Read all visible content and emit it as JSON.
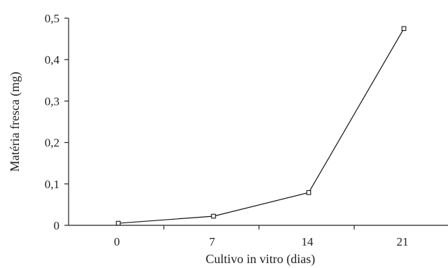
{
  "chart_data": {
    "type": "line",
    "categories": [
      "0",
      "7",
      "14",
      "21"
    ],
    "x": [
      0,
      7,
      14,
      21
    ],
    "series": [
      {
        "values": [
          0.005,
          0.022,
          0.079,
          0.475
        ]
      }
    ],
    "xlabel": "Cultivo  in vitro (dias)",
    "ylabel": "Matéria fresca (mg)",
    "ylim": [
      0,
      0.5
    ],
    "yticks": [
      0,
      0.1,
      0.2,
      0.3,
      0.4,
      0.5
    ],
    "ytick_labels": [
      "0",
      "0,1",
      "0,2",
      "0,3",
      "0,4",
      "0,5"
    ],
    "marker": "square",
    "grid": false,
    "legend": "none"
  }
}
